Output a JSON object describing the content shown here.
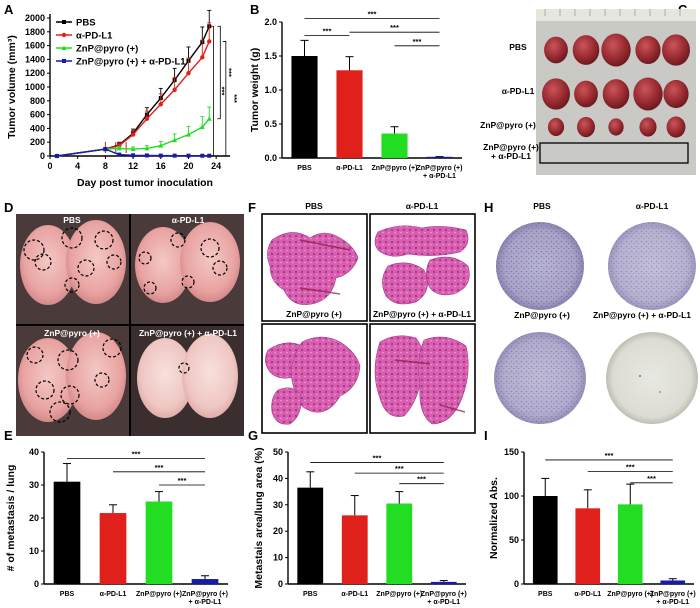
{
  "panels": {
    "a": "A",
    "b": "B",
    "c": "C",
    "d": "D",
    "e": "E",
    "f": "F",
    "g": "G",
    "h": "H",
    "i": "I"
  },
  "photo_labels": {
    "c": [
      "PBS",
      "α-PD-L1",
      "ZnP@pyro (+)",
      "ZnP@pyro (+)",
      "+ α-PD-L1"
    ],
    "d": [
      "PBS",
      "α-PD-L1",
      "ZnP@pyro (+)",
      "ZnP@pyro (+) + α-PD-L1"
    ],
    "f": [
      "PBS",
      "α-PD-L1",
      "ZnP@pyro (+)",
      "ZnP@pyro (+) + α-PD-L1"
    ],
    "h": [
      "PBS",
      "α-PD-L1",
      "ZnP@pyro (+)",
      "ZnP@pyro (+) + α-PD-L1"
    ]
  },
  "colors": {
    "pbs": "#000000",
    "apdl1": "#e0201b",
    "znp": "#22dd22",
    "combo": "#1a1aa8"
  },
  "chart_data": [
    {
      "id": "a",
      "type": "line",
      "xlabel": "Day post tumor inoculation",
      "ylabel": "Tumor volume (mm³)",
      "xlim": [
        0,
        26
      ],
      "ylim": [
        0,
        2000
      ],
      "xticks": [
        0,
        4,
        8,
        12,
        16,
        20,
        24
      ],
      "yticks": [
        0,
        200,
        400,
        600,
        800,
        1000,
        1200,
        1400,
        1600,
        1800,
        2000
      ],
      "legend_placement": "top-left",
      "significance": [
        "***",
        "***",
        "***"
      ],
      "series": [
        {
          "name": "PBS",
          "color": "#000000",
          "marker": "square",
          "x": [
            1,
            8,
            10,
            12,
            14,
            16,
            18,
            20,
            22,
            23
          ],
          "y": [
            0,
            100,
            160,
            330,
            600,
            840,
            1100,
            1380,
            1650,
            1880
          ],
          "err": [
            0,
            20,
            40,
            60,
            100,
            140,
            170,
            200,
            220,
            230
          ]
        },
        {
          "name": "α-PD-L1",
          "color": "#e0201b",
          "marker": "circle",
          "x": [
            1,
            8,
            10,
            12,
            14,
            16,
            18,
            20,
            22,
            23
          ],
          "y": [
            0,
            100,
            150,
            310,
            540,
            750,
            960,
            1200,
            1430,
            1660
          ],
          "err": [
            0,
            20,
            40,
            60,
            110,
            150,
            180,
            220,
            250,
            270
          ]
        },
        {
          "name": "ZnP@pyro (+)",
          "color": "#22dd22",
          "marker": "triangle",
          "x": [
            1,
            8,
            10,
            12,
            14,
            16,
            18,
            20,
            22,
            23
          ],
          "y": [
            0,
            100,
            110,
            100,
            110,
            150,
            230,
            310,
            420,
            540
          ],
          "err": [
            0,
            20,
            30,
            30,
            40,
            60,
            90,
            120,
            150,
            170
          ]
        },
        {
          "name": "ZnP@pyro (+) + α-PD-L1",
          "color": "#1a1aa8",
          "marker": "square",
          "x": [
            1,
            8,
            10,
            12,
            14,
            16,
            18,
            20,
            22,
            23
          ],
          "y": [
            0,
            100,
            20,
            10,
            8,
            6,
            5,
            5,
            4,
            4
          ],
          "err": [
            0,
            20,
            10,
            5,
            4,
            3,
            3,
            3,
            3,
            3
          ]
        }
      ]
    },
    {
      "id": "b",
      "type": "bar",
      "ylabel": "Tumor weight (g)",
      "ylim": [
        0,
        2.0
      ],
      "yticks": [
        "0.0",
        "0.5",
        "1.0",
        "1.5",
        "2.0"
      ],
      "categories": [
        "PBS",
        "α-PD-L1",
        "ZnP@pyro (+)",
        "ZnP@pyro (+)|+ α-PD-L1"
      ],
      "values": [
        1.5,
        1.29,
        0.36,
        0.01
      ],
      "errors": [
        0.23,
        0.2,
        0.1,
        0.01
      ],
      "colors": [
        "#000000",
        "#e0201b",
        "#22dd22",
        "#1a1aa8"
      ],
      "significance": [
        {
          "from": 0,
          "to": 1,
          "label": "***",
          "y": 1.8
        },
        {
          "from": 0,
          "to": 3,
          "label": "***",
          "y": 2.05
        },
        {
          "from": 1,
          "to": 3,
          "label": "***",
          "y": 1.85
        },
        {
          "from": 2,
          "to": 3,
          "label": "***",
          "y": 1.65
        }
      ]
    },
    {
      "id": "e",
      "type": "bar",
      "ylabel": "# of metastasis / lung",
      "ylim": [
        0,
        40
      ],
      "yticks": [
        "0",
        "10",
        "20",
        "30",
        "40"
      ],
      "categories": [
        "PBS",
        "α-PD-L1",
        "ZnP@pyro (+)",
        "ZnP@pyro (+)|+ α-PD-L1"
      ],
      "values": [
        31,
        21.5,
        25,
        1.5
      ],
      "errors": [
        5.5,
        2.5,
        3,
        1
      ],
      "colors": [
        "#000000",
        "#e0201b",
        "#22dd22",
        "#1a1aa8"
      ],
      "significance": [
        {
          "from": 0,
          "to": 3,
          "label": "***",
          "y": 38
        },
        {
          "from": 1,
          "to": 3,
          "label": "***",
          "y": 34
        },
        {
          "from": 2,
          "to": 3,
          "label": "***",
          "y": 30
        }
      ]
    },
    {
      "id": "g",
      "type": "bar",
      "ylabel": "Metastais area/lung area (%)",
      "ylim": [
        0,
        50
      ],
      "yticks": [
        "0",
        "10",
        "20",
        "30",
        "40",
        "50"
      ],
      "categories": [
        "PBS",
        "α-PD-L1",
        "ZnP@pyro (+)",
        "ZnP@pyro (+)|+ α-PD-L1"
      ],
      "values": [
        36.5,
        26,
        30.5,
        0.8
      ],
      "errors": [
        6,
        7.5,
        4.5,
        0.5
      ],
      "colors": [
        "#000000",
        "#e0201b",
        "#22dd22",
        "#1a1aa8"
      ],
      "significance": [
        {
          "from": 0,
          "to": 3,
          "label": "***",
          "y": 46
        },
        {
          "from": 1,
          "to": 3,
          "label": "***",
          "y": 42
        },
        {
          "from": 2,
          "to": 3,
          "label": "***",
          "y": 38
        }
      ]
    },
    {
      "id": "i",
      "type": "bar",
      "ylabel": "Normalized Abs.",
      "ylim": [
        0,
        150
      ],
      "yticks": [
        "0",
        "50",
        "100",
        "150"
      ],
      "categories": [
        "PBS",
        "α-PD-L1",
        "ZnP@pyro (+)",
        "ZnP@pyro (+)|+ α-PD-L1"
      ],
      "values": [
        100,
        86,
        90.5,
        4
      ],
      "errors": [
        20,
        21,
        23,
        2
      ],
      "colors": [
        "#000000",
        "#e0201b",
        "#22dd22",
        "#1a1aa8"
      ],
      "significance": [
        {
          "from": 0,
          "to": 3,
          "label": "***",
          "y": 141
        },
        {
          "from": 1,
          "to": 3,
          "label": "***",
          "y": 128
        },
        {
          "from": 2,
          "to": 3,
          "label": "***",
          "y": 115
        }
      ]
    }
  ]
}
